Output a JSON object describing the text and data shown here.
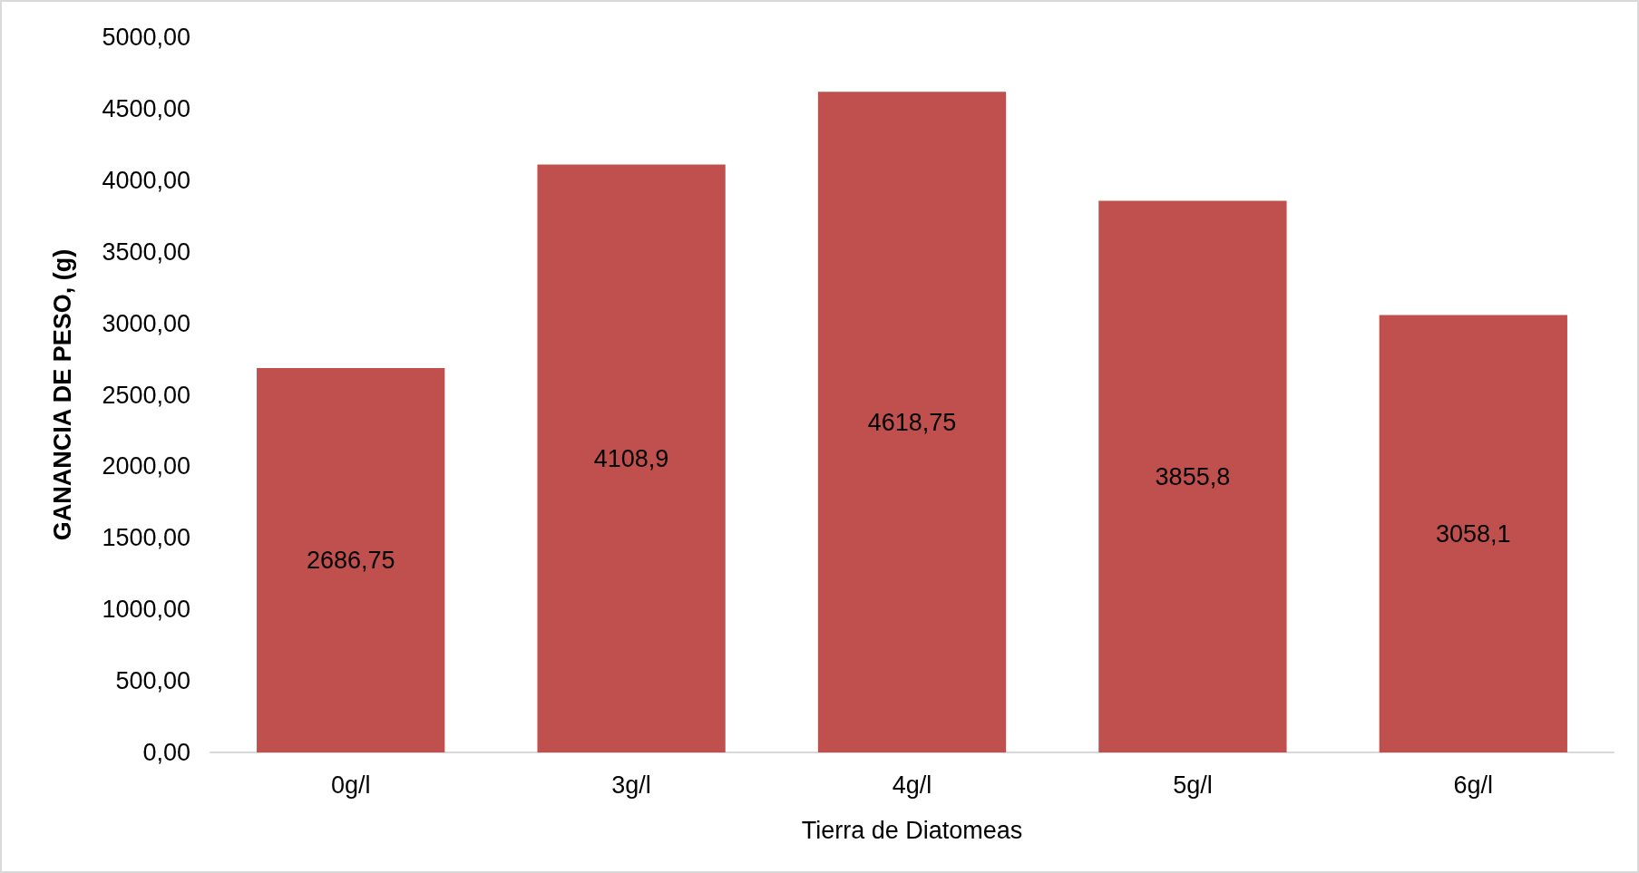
{
  "chart_data": {
    "type": "bar",
    "xlabel": "Tierra de Diatomeas",
    "ylabel": "GANANCIA DE PESO, (g)",
    "categories": [
      "0g/l",
      "3g/l",
      "4g/l",
      "5g/l",
      "6g/l"
    ],
    "values": [
      2686.75,
      4108.9,
      4618.75,
      3855.8,
      3058.1
    ],
    "value_labels": [
      "2686,75",
      "4108,9",
      "4618,75",
      "3855,8",
      "3058,1"
    ],
    "color": "#c0504d",
    "ylim": [
      0,
      5000
    ],
    "yticks": [
      {
        "value": 0,
        "label": "0,00"
      },
      {
        "value": 500,
        "label": "500,00"
      },
      {
        "value": 1000,
        "label": "1000,00"
      },
      {
        "value": 1500,
        "label": "1500,00"
      },
      {
        "value": 2000,
        "label": "2000,00"
      },
      {
        "value": 2500,
        "label": "2500,00"
      },
      {
        "value": 3000,
        "label": "3000,00"
      },
      {
        "value": 3500,
        "label": "3500,00"
      },
      {
        "value": 4000,
        "label": "4000,00"
      },
      {
        "value": 4500,
        "label": "4500,00"
      },
      {
        "value": 5000,
        "label": "5000,00"
      }
    ],
    "tick_labels": true
  }
}
